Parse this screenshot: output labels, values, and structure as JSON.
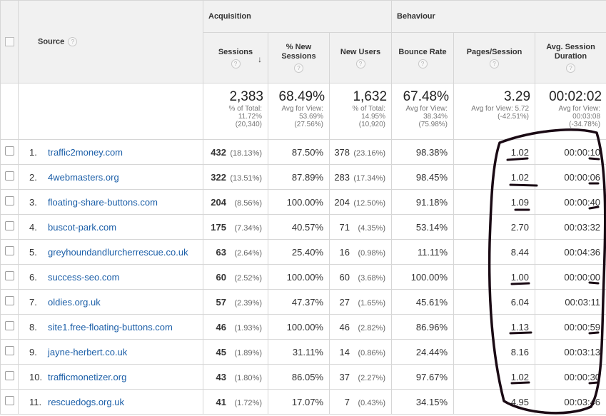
{
  "header": {
    "source_label": "Source",
    "groups": {
      "acquisition": "Acquisition",
      "behaviour": "Behaviour"
    },
    "columns": {
      "sessions": "Sessions",
      "new_sessions": "% New Sessions",
      "new_users": "New Users",
      "bounce_rate": "Bounce Rate",
      "pages_session": "Pages/Session",
      "avg_duration": "Avg. Session Duration"
    },
    "help_glyph": "?",
    "sort_glyph": "↓"
  },
  "summary": {
    "sessions": {
      "value": "2,383",
      "l1": "% of Total:",
      "l2": "11.72%",
      "l3": "(20,340)"
    },
    "new_sessions": {
      "value": "68.49%",
      "l1": "Avg for View:",
      "l2": "53.69%",
      "l3": "(27.56%)"
    },
    "new_users": {
      "value": "1,632",
      "l1": "% of Total:",
      "l2": "14.95%",
      "l3": "(10,920)"
    },
    "bounce_rate": {
      "value": "67.48%",
      "l1": "Avg for View:",
      "l2": "38.34%",
      "l3": "(75.98%)"
    },
    "pages_session": {
      "value": "3.29",
      "l1": "Avg for View: 5.72",
      "l2": "(-42.51%)"
    },
    "avg_duration": {
      "value": "00:02:02",
      "l1": "Avg for View:",
      "l2": "00:03:08",
      "l3": "(-34.78%)"
    }
  },
  "rows": [
    {
      "idx": "1.",
      "source": "traffic2money.com",
      "sessions": "432",
      "sessions_pct": "(18.13%)",
      "new_sessions": "87.50%",
      "new_users": "378",
      "new_users_pct": "(23.16%)",
      "bounce": "98.38%",
      "pps": "1.02",
      "dur": "00:00:10"
    },
    {
      "idx": "2.",
      "source": "4webmasters.org",
      "sessions": "322",
      "sessions_pct": "(13.51%)",
      "new_sessions": "87.89%",
      "new_users": "283",
      "new_users_pct": "(17.34%)",
      "bounce": "98.45%",
      "pps": "1.02",
      "dur": "00:00:06"
    },
    {
      "idx": "3.",
      "source": "floating-share-buttons.com",
      "sessions": "204",
      "sessions_pct": "(8.56%)",
      "new_sessions": "100.00%",
      "new_users": "204",
      "new_users_pct": "(12.50%)",
      "bounce": "91.18%",
      "pps": "1.09",
      "dur": "00:00:40"
    },
    {
      "idx": "4.",
      "source": "buscot-park.com",
      "sessions": "175",
      "sessions_pct": "(7.34%)",
      "new_sessions": "40.57%",
      "new_users": "71",
      "new_users_pct": "(4.35%)",
      "bounce": "53.14%",
      "pps": "2.70",
      "dur": "00:03:32"
    },
    {
      "idx": "5.",
      "source": "greyhoundandlurcherrescue.co.uk",
      "sessions": "63",
      "sessions_pct": "(2.64%)",
      "new_sessions": "25.40%",
      "new_users": "16",
      "new_users_pct": "(0.98%)",
      "bounce": "11.11%",
      "pps": "8.44",
      "dur": "00:04:36"
    },
    {
      "idx": "6.",
      "source": "success-seo.com",
      "sessions": "60",
      "sessions_pct": "(2.52%)",
      "new_sessions": "100.00%",
      "new_users": "60",
      "new_users_pct": "(3.68%)",
      "bounce": "100.00%",
      "pps": "1.00",
      "dur": "00:00:00"
    },
    {
      "idx": "7.",
      "source": "oldies.org.uk",
      "sessions": "57",
      "sessions_pct": "(2.39%)",
      "new_sessions": "47.37%",
      "new_users": "27",
      "new_users_pct": "(1.65%)",
      "bounce": "45.61%",
      "pps": "6.04",
      "dur": "00:03:11"
    },
    {
      "idx": "8.",
      "source": "site1.free-floating-buttons.com",
      "sessions": "46",
      "sessions_pct": "(1.93%)",
      "new_sessions": "100.00%",
      "new_users": "46",
      "new_users_pct": "(2.82%)",
      "bounce": "86.96%",
      "pps": "1.13",
      "dur": "00:00:59"
    },
    {
      "idx": "9.",
      "source": "jayne-herbert.co.uk",
      "sessions": "45",
      "sessions_pct": "(1.89%)",
      "new_sessions": "31.11%",
      "new_users": "14",
      "new_users_pct": "(0.86%)",
      "bounce": "24.44%",
      "pps": "8.16",
      "dur": "00:03:13"
    },
    {
      "idx": "10.",
      "source": "trafficmonetizer.org",
      "sessions": "43",
      "sessions_pct": "(1.80%)",
      "new_sessions": "86.05%",
      "new_users": "37",
      "new_users_pct": "(2.27%)",
      "bounce": "97.67%",
      "pps": "1.02",
      "dur": "00:00:30"
    },
    {
      "idx": "11.",
      "source": "rescuedogs.org.uk",
      "sessions": "41",
      "sessions_pct": "(1.72%)",
      "new_sessions": "17.07%",
      "new_users": "7",
      "new_users_pct": "(0.43%)",
      "bounce": "34.15%",
      "pps": "4.95",
      "dur": "00:03:46"
    }
  ],
  "annotation_color": "#1a0a14"
}
